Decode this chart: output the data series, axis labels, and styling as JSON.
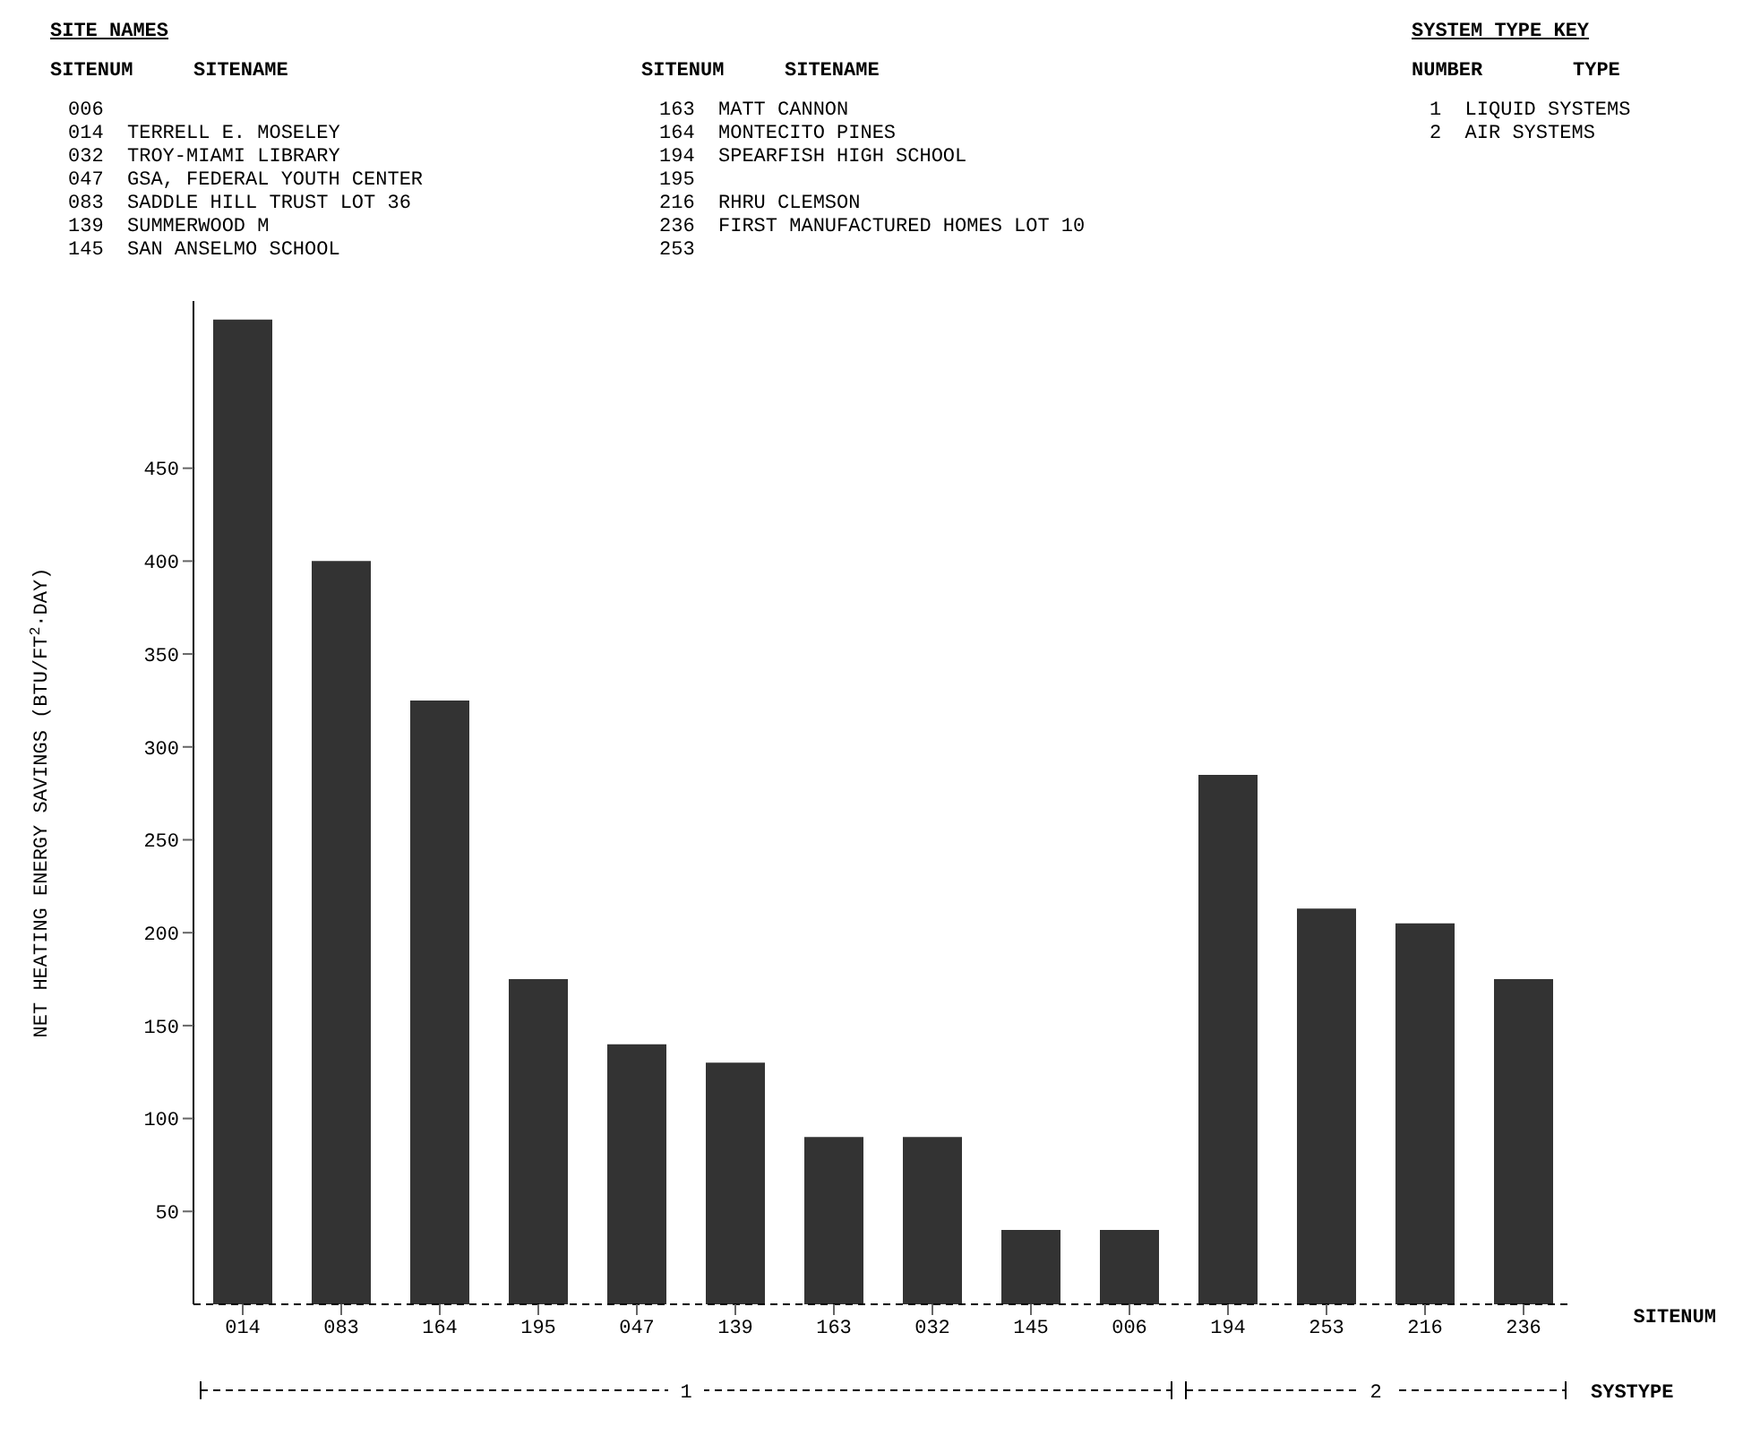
{
  "chart_data": {
    "type": "bar",
    "ylabel": "NET HEATING ENERGY SAVINGS (BTU/FT$^{2}$·DAY)",
    "xlabel": "SITENUM",
    "categories": [
      "014",
      "083",
      "164",
      "195",
      "047",
      "139",
      "163",
      "032",
      "145",
      "006",
      "194",
      "253",
      "216",
      "236"
    ],
    "values": [
      530,
      400,
      325,
      175,
      140,
      130,
      90,
      90,
      40,
      40,
      285,
      213,
      205,
      175
    ],
    "color": "#333333",
    "ylim": [
      0,
      540
    ],
    "yticks": [
      50,
      100,
      150,
      200,
      250,
      300,
      350,
      400,
      450
    ],
    "annotations": [
      "SITE NAMES",
      "SYSTEM TYPE KEY",
      "SITENUM",
      "SITENAME",
      "SITENUM",
      "SITENAME",
      "NUMBER",
      "TYPE",
      "006",
      "014  TERRELL E. MOSELEY",
      "032  TROY-MIAMI LIBRARY",
      "047  GSA, FEDERAL YOUTH CENTER",
      "083  SADDLE HILL TRUST LOT 36",
      "139  SUMMERWOOD M",
      "145  SAN ANSELMO SCHOOL",
      "163  MATT CANNON",
      "164  MONTECITO PINES",
      "194  SPEARFISH HIGH SCHOOL",
      "195",
      "216  RHRU CLEMSON",
      "236  FIRST MANUFACTURED HOMES LOT 10",
      "253",
      "1  LIQUID SYSTEMS",
      "2  AIR SYSTEMS",
      "SYSTYPE",
      "1",
      "2"
    ]
  }
}
